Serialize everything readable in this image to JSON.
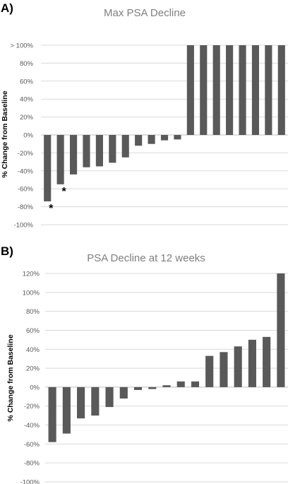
{
  "panel_a_letter": "A)",
  "panel_b_letter": "B)",
  "chart_data": [
    {
      "type": "bar",
      "title": "Max PSA Decline",
      "ylabel": "% Change from Baseline",
      "xlabel": "",
      "ylim": [
        -100,
        100
      ],
      "yticks": [
        -100,
        -80,
        -60,
        -40,
        -20,
        0,
        20,
        40,
        60,
        80,
        100
      ],
      "ytick_labels": [
        "-100%",
        "-80%",
        "-60%",
        "-40%",
        "-20%",
        "0%",
        "20%",
        "40%",
        "60%",
        "80%",
        "> 100%"
      ],
      "grid": true,
      "values": [
        -74,
        -55,
        -44,
        -36,
        -35,
        -31,
        -25,
        -12,
        -10,
        -6,
        -5,
        100,
        100,
        100,
        100,
        100,
        100,
        100,
        100
      ],
      "annotations": [
        {
          "bar_index": 0,
          "text": "*"
        },
        {
          "bar_index": 1,
          "text": "*"
        }
      ]
    },
    {
      "type": "bar",
      "title": "PSA Decline at 12 weeks",
      "ylabel": "% Change from Baseline",
      "xlabel": "",
      "ylim": [
        -100,
        120
      ],
      "yticks": [
        -100,
        -80,
        -60,
        -40,
        -20,
        0,
        20,
        40,
        60,
        80,
        100,
        120
      ],
      "ytick_labels": [
        "-100%",
        "-80%",
        "-60%",
        "-40%",
        "-20%",
        "0%",
        "20%",
        "40%",
        "60%",
        "80%",
        "100%",
        "120%"
      ],
      "grid": true,
      "values": [
        -58,
        -49,
        -33,
        -30,
        -21,
        -12,
        -3,
        -2,
        2,
        6,
        6,
        33,
        37,
        43,
        50,
        53,
        120
      ]
    }
  ]
}
